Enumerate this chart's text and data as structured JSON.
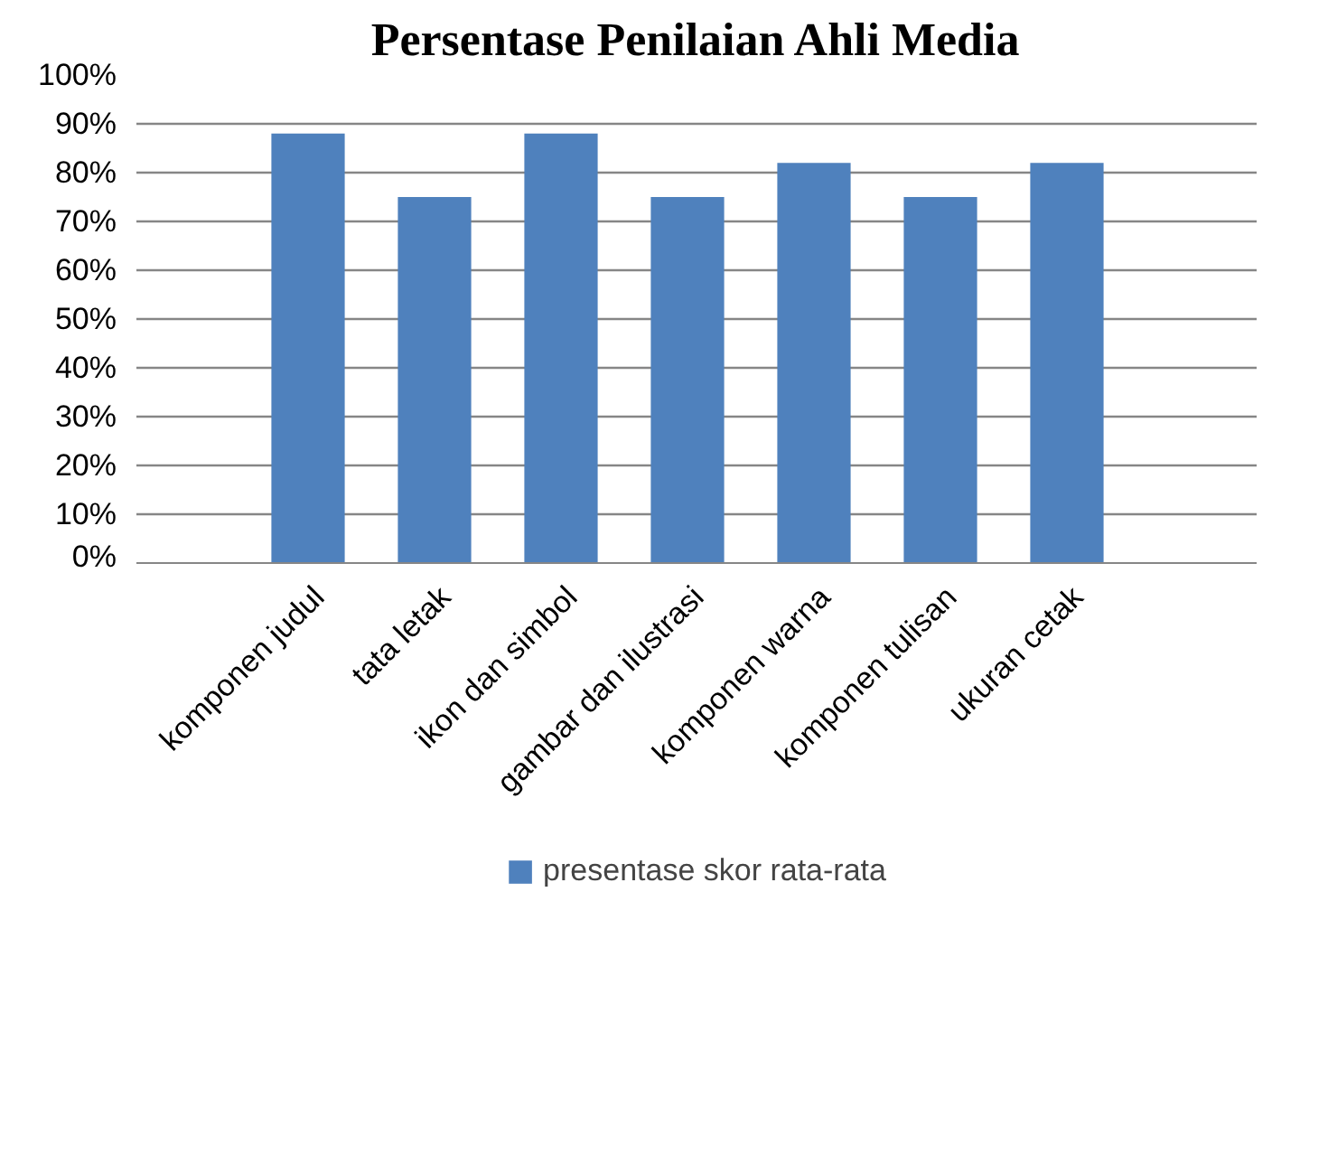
{
  "chart_data": {
    "type": "bar",
    "title": "Persentase Penilaian Ahli Media",
    "categories": [
      "komponen judul",
      "tata letak",
      "ikon dan simbol",
      "gambar dan ilustrasi",
      "komponen warna",
      "komponen tulisan",
      "ukuran cetak"
    ],
    "series": [
      {
        "name": "presentase skor rata-rata",
        "color": "#4f81bd",
        "values": [
          88,
          75,
          88,
          75,
          82,
          75,
          82
        ]
      }
    ],
    "ylim": [
      0,
      100
    ],
    "yticks": [
      {
        "value": 0,
        "label": "0%"
      },
      {
        "value": 10,
        "label": "10%"
      },
      {
        "value": 20,
        "label": "20%"
      },
      {
        "value": 30,
        "label": "30%"
      },
      {
        "value": 40,
        "label": "40%"
      },
      {
        "value": 50,
        "label": "50%"
      },
      {
        "value": 60,
        "label": "60%"
      },
      {
        "value": 70,
        "label": "70%"
      },
      {
        "value": 80,
        "label": "80%"
      },
      {
        "value": 90,
        "label": "90%"
      },
      {
        "value": 100,
        "label": "100%"
      }
    ],
    "grid": "y",
    "legend": "bottom"
  }
}
